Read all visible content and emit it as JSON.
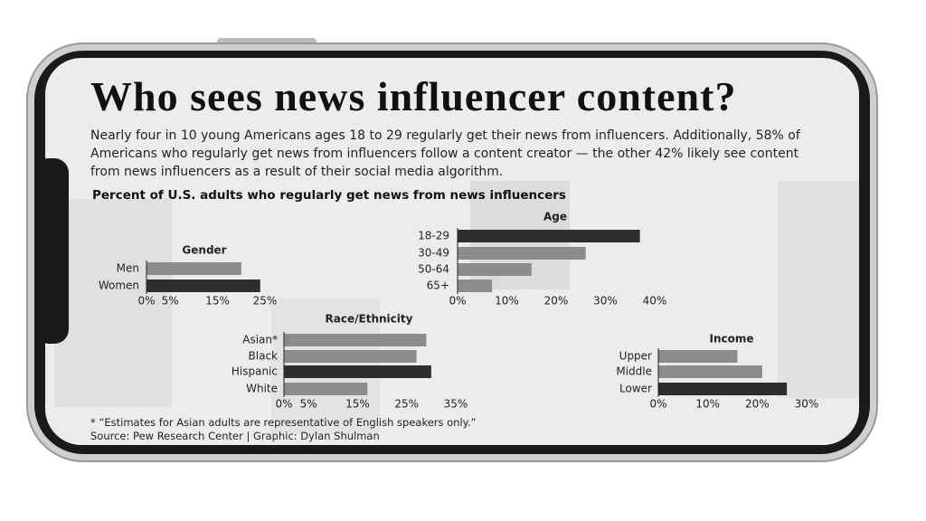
{
  "header": {
    "title": "Who sees news influencer content?",
    "description": "Nearly four in 10 young Americans ages 18 to 29 regularly get their news from influencers. Additionally, 58% of Americans who regularly get news from influencers follow a content creator — the other 42% likely see content from news influencers as a result of their social media algorithm.",
    "chart_heading": "Percent of U.S. adults who regularly get news from news influencers"
  },
  "chart_data": [
    {
      "type": "bar",
      "orientation": "horizontal",
      "title": "Gender",
      "categories": [
        "Men",
        "Women"
      ],
      "values": [
        20,
        24
      ],
      "colors": [
        "#8c8c8c",
        "#2e2e2e"
      ],
      "xlim": [
        0,
        25
      ],
      "xticks": [
        {
          "value": 0,
          "label": "0%"
        },
        {
          "value": 5,
          "label": "5%"
        },
        {
          "value": 15,
          "label": "15%"
        },
        {
          "value": 25,
          "label": "25%"
        }
      ]
    },
    {
      "type": "bar",
      "orientation": "horizontal",
      "title": "Age",
      "categories": [
        "18-29",
        "30-49",
        "50-64",
        "65+"
      ],
      "values": [
        37,
        26,
        15,
        7
      ],
      "colors": [
        "#2e2e2e",
        "#8c8c8c",
        "#8c8c8c",
        "#8c8c8c"
      ],
      "xlim": [
        0,
        40
      ],
      "xticks": [
        {
          "value": 0,
          "label": "0%"
        },
        {
          "value": 10,
          "label": "10%"
        },
        {
          "value": 20,
          "label": "20%"
        },
        {
          "value": 30,
          "label": "30%"
        },
        {
          "value": 40,
          "label": "40%"
        }
      ]
    },
    {
      "type": "bar",
      "orientation": "horizontal",
      "title": "Race/Ethnicity",
      "categories": [
        "Asian*",
        "Black",
        "Hispanic",
        "White"
      ],
      "values": [
        29,
        27,
        30,
        17
      ],
      "colors": [
        "#8c8c8c",
        "#8c8c8c",
        "#2e2e2e",
        "#8c8c8c"
      ],
      "xlim": [
        0,
        35
      ],
      "xticks": [
        {
          "value": 0,
          "label": "0%"
        },
        {
          "value": 5,
          "label": "5%"
        },
        {
          "value": 15,
          "label": "15%"
        },
        {
          "value": 25,
          "label": "25%"
        },
        {
          "value": 35,
          "label": "35%"
        }
      ]
    },
    {
      "type": "bar",
      "orientation": "horizontal",
      "title": "Income",
      "categories": [
        "Upper",
        "Middle",
        "Lower"
      ],
      "values": [
        16,
        21,
        26
      ],
      "colors": [
        "#8c8c8c",
        "#8c8c8c",
        "#2e2e2e"
      ],
      "xlim": [
        0,
        30
      ],
      "xticks": [
        {
          "value": 0,
          "label": "0%"
        },
        {
          "value": 10,
          "label": "10%"
        },
        {
          "value": 20,
          "label": "20%"
        },
        {
          "value": 30,
          "label": "30%"
        }
      ]
    }
  ],
  "footer": {
    "note": "* “Estimates for Asian adults are representative of English speakers only.”",
    "source": "Source: Pew Research Center | Graphic: Dylan Shulman"
  }
}
